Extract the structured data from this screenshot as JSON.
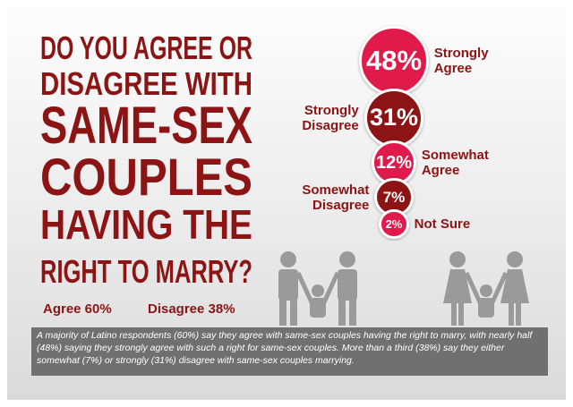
{
  "chart_data": {
    "type": "bubble",
    "title": [
      "DO YOU AGREE OR",
      "DISAGREE WITH",
      "SAME-SEX",
      "COUPLES",
      "HAVING THE",
      "RIGHT TO MARRY?"
    ],
    "categories": [
      "Strongly Agree",
      "Strongly Disagree",
      "Somewhat Agree",
      "Somewhat Disagree",
      "Not Sure"
    ],
    "values": [
      48,
      31,
      12,
      7,
      2
    ],
    "value_labels": [
      "48%",
      "31%",
      "12%",
      "7%",
      "2%"
    ],
    "colors": [
      "#e01b4c",
      "#8c1414",
      "#e01b4c",
      "#8c1414",
      "#e01b4c"
    ],
    "summary": [
      "Agree 60%",
      "Disagree 38%"
    ],
    "caption": "A majority of Latino respondents (60%) say they agree with same-sex couples having the right to marry, with nearly half (48%) saying they strongly agree with such a right for same-sex couples. More than a third (38%) say they either somewhat (7%) or strongly (31%) disagree with same-sex couples marrying."
  }
}
